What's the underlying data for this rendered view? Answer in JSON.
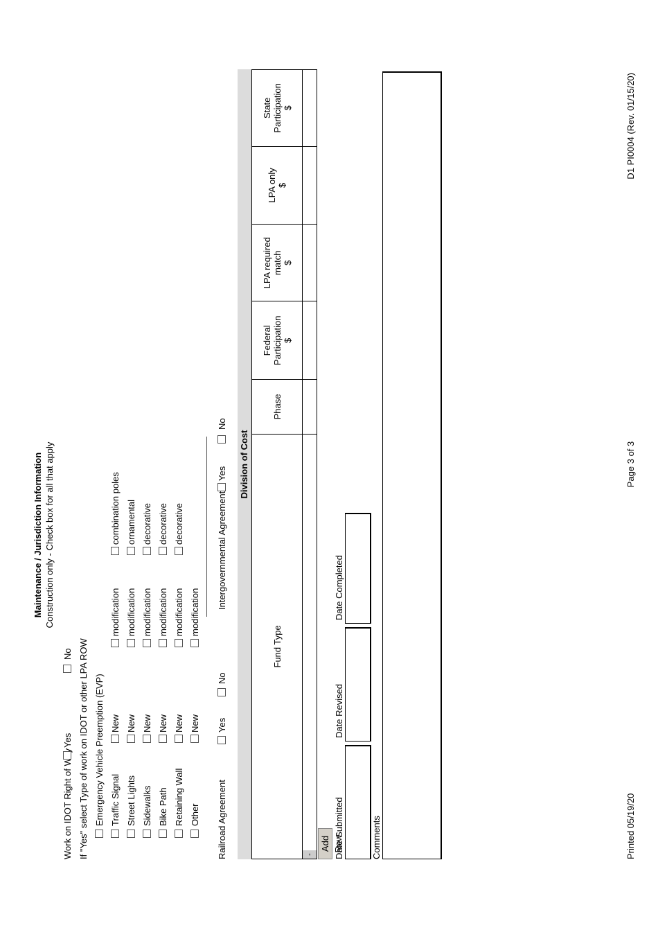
{
  "header": {
    "title": "Maintenance / Jurisdiction Information",
    "subtitle": "Construction only - Check box for all that apply"
  },
  "row_question": {
    "label": "Work on IDOT Right of Way",
    "yes": "Yes",
    "no": "No"
  },
  "if_yes_label": "If \"Yes\" select Type of work on IDOT or other LPA ROW",
  "evp_label": "Emergency Vehicle Preemption (EVP)",
  "work_types": [
    {
      "label": "Traffic Signal",
      "new": "New",
      "mod": "modification",
      "extra": "combination poles"
    },
    {
      "label": "Street Lights",
      "new": "New",
      "mod": "modification",
      "extra": "ornamental"
    },
    {
      "label": "Sidewalks",
      "new": "New",
      "mod": "modification",
      "extra": "decorative"
    },
    {
      "label": "Bike Path",
      "new": "New",
      "mod": "modification",
      "extra": "decorative"
    },
    {
      "label": "Retaining Wall",
      "new": "New",
      "mod": "modification",
      "extra": "decorative"
    },
    {
      "label": "Other",
      "new": "New",
      "mod": "modification"
    }
  ],
  "railroad": {
    "label": "Railroad Agreement",
    "yes": "Yes",
    "no": "No"
  },
  "intergov": {
    "label": "Intergovernmental Agreement",
    "yes": "Yes",
    "no": "No"
  },
  "division": {
    "title": "Division of Cost",
    "columns": [
      "Fund Type",
      "Phase",
      "Federal\nParticipation\n$",
      "LPA required\nmatch\n$",
      "LPA only\n$",
      "State\nParticipation\n$"
    ],
    "row_marker": "-",
    "add_row": "Add Row"
  },
  "dates": {
    "submitted": "Date Submitted",
    "revised": "Date Revised",
    "completed": "Date Completed"
  },
  "comments_label": "Comments",
  "footer": {
    "printed": "Printed 05/19/20",
    "page": "Page 3 of 3",
    "form": "D1 PI0004 (Rev. 01/15/20)"
  }
}
